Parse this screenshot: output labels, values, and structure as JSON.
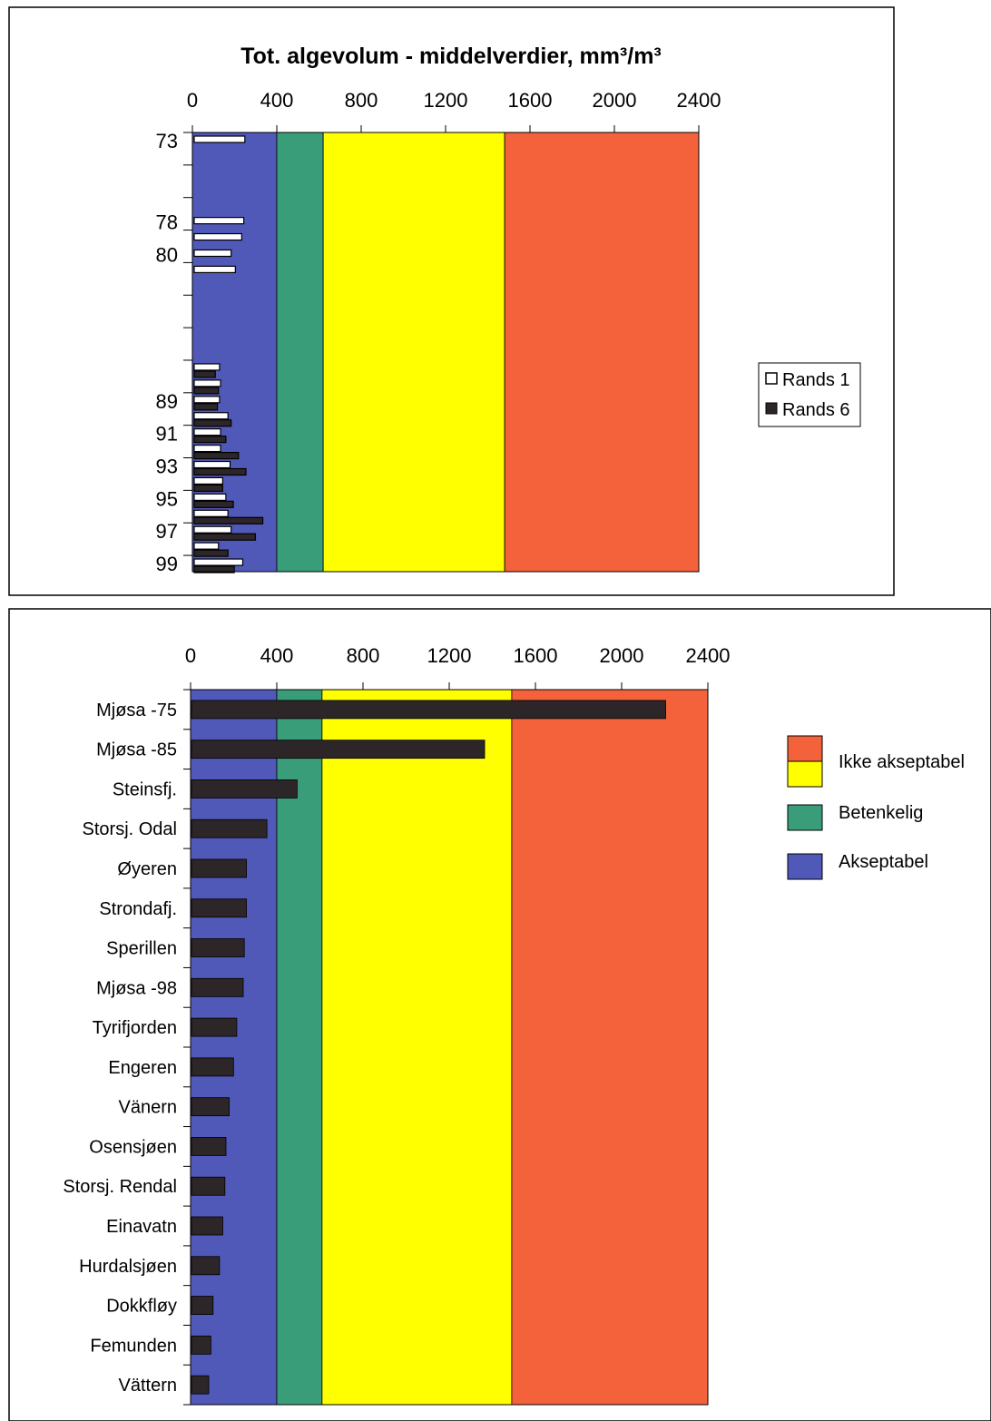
{
  "chart_data": [
    {
      "type": "bar",
      "orientation": "horizontal",
      "title": "Tot. algevolum - middelverdier, mm³/m³",
      "xlim": [
        0,
        2400
      ],
      "x_ticks": [
        "0",
        "400",
        "800",
        "1200",
        "1600",
        "2000",
        "2400"
      ],
      "x_tick_values": [
        0,
        400,
        800,
        1200,
        1600,
        2000,
        2400
      ],
      "y_tick_labels": [
        "73",
        "78",
        "80",
        "89",
        "91",
        "93",
        "95",
        "97",
        "99"
      ],
      "legend": {
        "placement": "right",
        "entries": [
          "Rands 1",
          "Rands 6"
        ]
      },
      "series": [
        {
          "name": "Rands 1",
          "color": "#ffffff",
          "points": [
            {
              "year": 73,
              "value": 240
            },
            {
              "year": 78,
              "value": 235
            },
            {
              "year": 79,
              "value": 225
            },
            {
              "year": 80,
              "value": 175
            },
            {
              "year": 81,
              "value": 195
            },
            {
              "year": 87,
              "value": 120
            },
            {
              "year": 88,
              "value": 125
            },
            {
              "year": 89,
              "value": 120
            },
            {
              "year": 90,
              "value": 160
            },
            {
              "year": 91,
              "value": 125
            },
            {
              "year": 92,
              "value": 125
            },
            {
              "year": 93,
              "value": 170
            },
            {
              "year": 94,
              "value": 135
            },
            {
              "year": 95,
              "value": 150
            },
            {
              "year": 96,
              "value": 160
            },
            {
              "year": 97,
              "value": 175
            },
            {
              "year": 98,
              "value": 115
            },
            {
              "year": 99,
              "value": 230
            }
          ]
        },
        {
          "name": "Rands 6",
          "color": "#2d2628",
          "points": [
            {
              "year": 87,
              "value": 100
            },
            {
              "year": 88,
              "value": 115
            },
            {
              "year": 89,
              "value": 110
            },
            {
              "year": 90,
              "value": 175
            },
            {
              "year": 91,
              "value": 150
            },
            {
              "year": 92,
              "value": 210
            },
            {
              "year": 93,
              "value": 245
            },
            {
              "year": 94,
              "value": 135
            },
            {
              "year": 95,
              "value": 185
            },
            {
              "year": 96,
              "value": 325
            },
            {
              "year": 97,
              "value": 290
            },
            {
              "year": 98,
              "value": 160
            },
            {
              "year": 99,
              "value": 190
            }
          ]
        }
      ],
      "zones": [
        {
          "label": "Akseptabel",
          "from": 0,
          "to": 400,
          "color": "#5058b8"
        },
        {
          "label": "Betenkelig",
          "from": 400,
          "to": 620,
          "color": "#3a9d7a"
        },
        {
          "label": "Ikke akseptabel",
          "from": 620,
          "to": 1480,
          "color": "#ffff00"
        },
        {
          "label": "Ikke akseptabel",
          "from": 1480,
          "to": 2400,
          "color": "#f4623c"
        }
      ],
      "grid": false
    },
    {
      "type": "bar",
      "orientation": "horizontal",
      "title": "",
      "xlim": [
        0,
        2400
      ],
      "x_ticks": [
        "0",
        "400",
        "800",
        "1200",
        "1600",
        "2000",
        "2400"
      ],
      "x_tick_values": [
        0,
        400,
        800,
        1200,
        1600,
        2000,
        2400
      ],
      "categories": [
        "Mjøsa -75",
        "Mjøsa -85",
        "Steinsfj.",
        "Storsj. Odal",
        "Øyeren",
        "Strondafj.",
        "Sperillen",
        "Mjøsa -98",
        "Tyrifjorden",
        "Engeren",
        "Vänern",
        "Osensjøen",
        "Storsj. Rendal",
        "Einavatn",
        "Hurdalsjøen",
        "Dokkfløy",
        "Femunden",
        "Vättern"
      ],
      "values": [
        2200,
        1360,
        490,
        350,
        255,
        255,
        245,
        240,
        210,
        195,
        175,
        160,
        155,
        145,
        130,
        100,
        90,
        80
      ],
      "bar_color": "#2d2628",
      "legend": {
        "placement": "right",
        "entries": [
          {
            "label": "Ikke akseptabel",
            "colors": [
              "#f4623c",
              "#ffff00"
            ]
          },
          {
            "label": "Betenkelig",
            "colors": [
              "#3a9d7a"
            ]
          },
          {
            "label": "Akseptabel",
            "colors": [
              "#5058b8"
            ]
          }
        ]
      },
      "zones": [
        {
          "label": "Akseptabel",
          "from": 0,
          "to": 400,
          "color": "#5058b8"
        },
        {
          "label": "Betenkelig",
          "from": 400,
          "to": 610,
          "color": "#3a9d7a"
        },
        {
          "label": "Ikke akseptabel",
          "from": 610,
          "to": 1490,
          "color": "#ffff00"
        },
        {
          "label": "Ikke akseptabel",
          "from": 1490,
          "to": 2400,
          "color": "#f4623c"
        }
      ],
      "grid": false
    }
  ]
}
